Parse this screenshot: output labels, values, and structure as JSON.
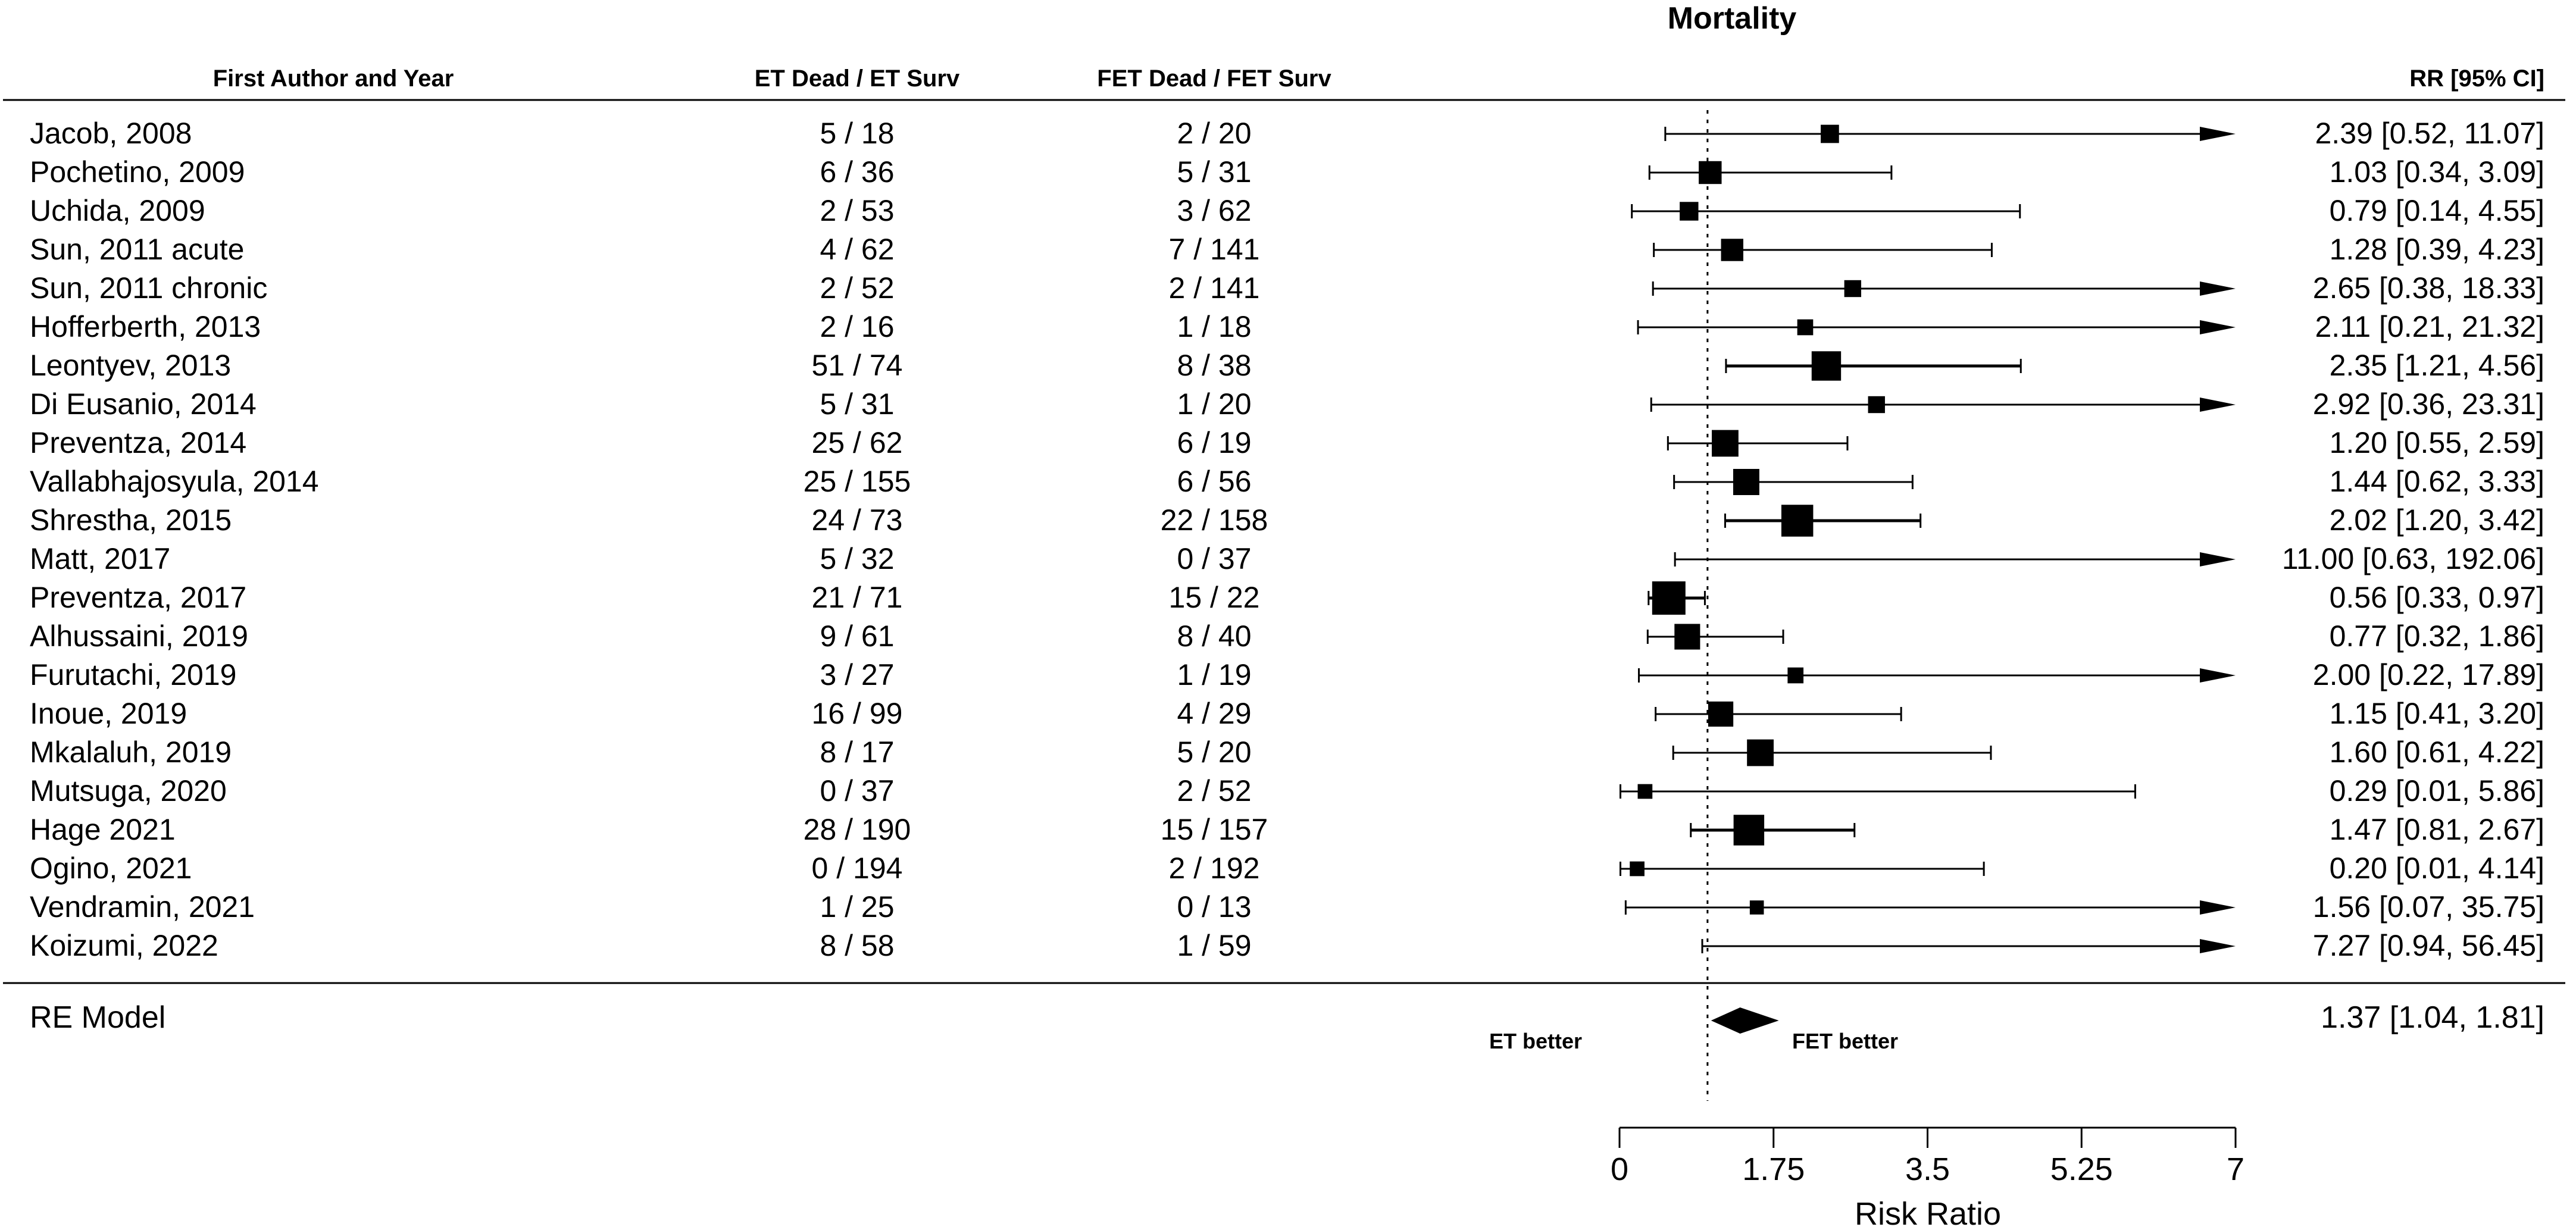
{
  "chart_data": {
    "type": "forest",
    "title": "Mortality",
    "xlabel": "Risk Ratio",
    "xlim": [
      0,
      7
    ],
    "ticks": [
      0,
      1.75,
      3.5,
      5.25,
      7
    ],
    "tick_labels": [
      "0",
      "1.75",
      "3.5",
      "5.25",
      "7"
    ],
    "reference_line": 1,
    "columns": {
      "study": "First Author and Year",
      "et": "ET Dead / ET Surv",
      "fet": "FET Dead / FET Surv",
      "rr": "RR [95% CI]"
    },
    "annotations": {
      "left": "ET better",
      "right": "FET better"
    },
    "studies": [
      {
        "name": "Jacob, 2008",
        "et": "5 / 18",
        "fet": "2 / 20",
        "rr": 2.39,
        "lo": 0.52,
        "hi": 11.07,
        "label": "2.39 [0.52, 11.07]",
        "w": 1.3
      },
      {
        "name": "Pochetino, 2009",
        "et": "6 / 36",
        "fet": "5 / 31",
        "rr": 1.03,
        "lo": 0.34,
        "hi": 3.09,
        "label": "1.03 [0.34, 3.09]",
        "w": 2.6
      },
      {
        "name": "Uchida, 2009",
        "et": "2 / 53",
        "fet": "3 / 62",
        "rr": 0.79,
        "lo": 0.14,
        "hi": 4.55,
        "label": "0.79 [0.14, 4.55]",
        "w": 1.4
      },
      {
        "name": "Sun, 2011 acute",
        "et": "4 / 62",
        "fet": "7 / 141",
        "rr": 1.28,
        "lo": 0.39,
        "hi": 4.23,
        "label": "1.28 [0.39, 4.23]",
        "w": 2.4
      },
      {
        "name": "Sun, 2011 chronic",
        "et": "2 / 52",
        "fet": "2 / 141",
        "rr": 2.65,
        "lo": 0.38,
        "hi": 18.33,
        "label": "2.65 [0.38, 18.33]",
        "w": 1.0
      },
      {
        "name": "Hofferberth, 2013",
        "et": "2 / 16",
        "fet": "1 / 18",
        "rr": 2.11,
        "lo": 0.21,
        "hi": 21.32,
        "label": "2.11 [0.21, 21.32]",
        "w": 0.8
      },
      {
        "name": "Leontyev, 2013",
        "et": "51 / 74",
        "fet": "8 / 38",
        "rr": 2.35,
        "lo": 1.21,
        "hi": 4.56,
        "label": "2.35 [1.21, 4.56]",
        "w": 5.2
      },
      {
        "name": "Di Eusanio, 2014",
        "et": "5 / 31",
        "fet": "1 / 20",
        "rr": 2.92,
        "lo": 0.36,
        "hi": 23.31,
        "label": "2.92 [0.36, 23.31]",
        "w": 1.0
      },
      {
        "name": "Preventza, 2014",
        "et": "25 / 62",
        "fet": "6 / 19",
        "rr": 1.2,
        "lo": 0.55,
        "hi": 2.59,
        "label": "1.20 [0.55, 2.59]",
        "w": 4.0
      },
      {
        "name": "Vallabhajosyula, 2014",
        "et": "25 / 155",
        "fet": "6 / 56",
        "rr": 1.44,
        "lo": 0.62,
        "hi": 3.33,
        "label": "1.44 [0.62, 3.33]",
        "w": 3.8
      },
      {
        "name": "Shrestha, 2015",
        "et": "24 / 73",
        "fet": "22 / 158",
        "rr": 2.02,
        "lo": 1.2,
        "hi": 3.42,
        "label": "2.02 [1.20, 3.42]",
        "w": 6.4
      },
      {
        "name": "Matt, 2017",
        "et": "5 / 32",
        "fet": "0 / 37",
        "rr": 11.0,
        "lo": 0.63,
        "hi": 192.06,
        "label": "11.00 [0.63, 192.06]",
        "w": 0.5
      },
      {
        "name": "Preventza, 2017",
        "et": "21 / 71",
        "fet": "15 / 22",
        "rr": 0.56,
        "lo": 0.33,
        "hi": 0.97,
        "label": "0.56 [0.33, 0.97]",
        "w": 7.2
      },
      {
        "name": "Alhussaini, 2019",
        "et": "9 / 61",
        "fet": "8 / 40",
        "rr": 0.77,
        "lo": 0.32,
        "hi": 1.86,
        "label": "0.77 [0.32, 1.86]",
        "w": 3.6
      },
      {
        "name": "Furutachi, 2019",
        "et": "3 / 27",
        "fet": "1 / 19",
        "rr": 2.0,
        "lo": 0.22,
        "hi": 17.89,
        "label": "2.00 [0.22, 17.89]",
        "w": 0.8
      },
      {
        "name": "Inoue, 2019",
        "et": "16 / 99",
        "fet": "4 / 29",
        "rr": 1.15,
        "lo": 0.41,
        "hi": 3.2,
        "label": "1.15 [0.41, 3.20]",
        "w": 3.4
      },
      {
        "name": "Mkalaluh, 2019",
        "et": "8 / 17",
        "fet": "5 / 20",
        "rr": 1.6,
        "lo": 0.61,
        "hi": 4.22,
        "label": "1.60 [0.61, 4.22]",
        "w": 4.0
      },
      {
        "name": "Mutsuga, 2020",
        "et": "0 / 37",
        "fet": "2 / 52",
        "rr": 0.29,
        "lo": 0.01,
        "hi": 5.86,
        "label": "0.29 [0.01, 5.86]",
        "w": 0.6
      },
      {
        "name": "Hage 2021",
        "et": "28 / 190",
        "fet": "15 / 157",
        "rr": 1.47,
        "lo": 0.81,
        "hi": 2.67,
        "label": "1.47 [0.81, 2.67]",
        "w": 5.8
      },
      {
        "name": "Ogino, 2021",
        "et": "0 / 194",
        "fet": "2 / 192",
        "rr": 0.2,
        "lo": 0.01,
        "hi": 4.14,
        "label": "0.20 [0.01, 4.14]",
        "w": 0.6
      },
      {
        "name": "Vendramin, 2021",
        "et": "1 / 25",
        "fet": "0 / 13",
        "rr": 1.56,
        "lo": 0.07,
        "hi": 35.75,
        "label": "1.56 [0.07, 35.75]",
        "w": 0.5
      },
      {
        "name": "Koizumi, 2022",
        "et": "8 / 58",
        "fet": "1 / 59",
        "rr": 7.27,
        "lo": 0.94,
        "hi": 56.45,
        "label": "7.27 [0.94, 56.45]",
        "w": 0.9
      }
    ],
    "summary": {
      "name": "RE Model",
      "rr": 1.37,
      "lo": 1.04,
      "hi": 1.81,
      "label": "1.37 [1.04, 1.81]"
    }
  }
}
